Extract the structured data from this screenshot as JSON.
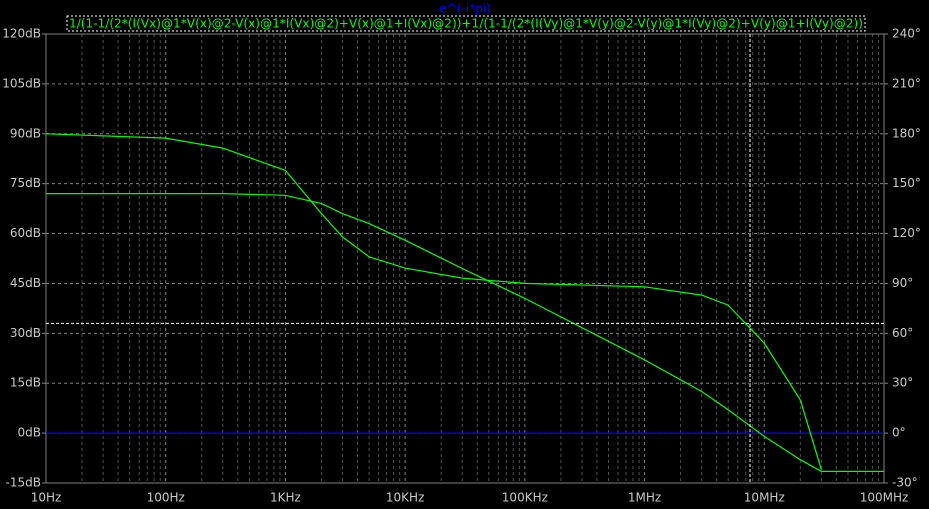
{
  "chart_data": {
    "type": "line",
    "title": "e^(-i*pi)",
    "x_scale": "log",
    "background": "#000000",
    "grid": true,
    "x": [
      10,
      100,
      300,
      1000,
      2000,
      3000,
      5000,
      10000,
      30000,
      100000,
      1000000,
      3000000,
      5000000,
      10000000,
      20000000,
      30000000,
      50000000,
      100000000
    ],
    "series": [
      {
        "name": "e^(-i*pi)",
        "color": "#0000ff",
        "values": [
          0,
          0,
          0,
          0,
          0,
          0,
          0,
          0,
          0,
          0,
          0,
          0,
          0,
          0,
          0,
          0,
          0,
          0
        ]
      },
      {
        "name": "1/(1-1/(2*(I(Vx)@1*V(x)@2-V(x)@1*I(Vx)@2)+V(x)@1+I(Vx)@2))+1/(1-1/(2*(I(Vy)@1*V(y)@2-V(y)@1*I(Vy)@2)+V(y)@1+I(Vy)@2))",
        "color": "#00ff00",
        "values": [
          90,
          88.7,
          85.7,
          79,
          66,
          59,
          53,
          49.6,
          46.6,
          45,
          44,
          41.5,
          38.5,
          27,
          10,
          -11,
          null,
          null
        ],
        "phase": [
          144,
          144,
          144,
          143,
          138,
          132,
          126,
          116,
          99,
          81,
          44,
          25,
          14,
          -2,
          -16,
          -23,
          -23,
          -23
        ],
        "phase_axis": "y2"
      }
    ],
    "xlim": [
      10,
      100000000
    ],
    "xticks": [
      {
        "value": 10,
        "label": "10Hz"
      },
      {
        "value": 100,
        "label": "100Hz"
      },
      {
        "value": 1000,
        "label": "1KHz"
      },
      {
        "value": 10000,
        "label": "10KHz"
      },
      {
        "value": 100000,
        "label": "100KHz"
      },
      {
        "value": 1000000,
        "label": "1MHz"
      },
      {
        "value": 10000000,
        "label": "10MHz"
      },
      {
        "value": 100000000,
        "label": "100MHz"
      }
    ],
    "ylim": [
      -15,
      120
    ],
    "yticks": [
      {
        "value": -15,
        "label": "-15dB"
      },
      {
        "value": 0,
        "label": "0dB"
      },
      {
        "value": 15,
        "label": "15dB"
      },
      {
        "value": 30,
        "label": "30dB"
      },
      {
        "value": 45,
        "label": "45dB"
      },
      {
        "value": 60,
        "label": "60dB"
      },
      {
        "value": 75,
        "label": "75dB"
      },
      {
        "value": 90,
        "label": "90dB"
      },
      {
        "value": 105,
        "label": "105dB"
      },
      {
        "value": 120,
        "label": "120dB"
      }
    ],
    "y2lim": [
      -30,
      240
    ],
    "y2ticks": [
      {
        "value": -30,
        "label": "-30°"
      },
      {
        "value": 0,
        "label": "0°"
      },
      {
        "value": 30,
        "label": "30°"
      },
      {
        "value": 60,
        "label": "60°"
      },
      {
        "value": 90,
        "label": "90°"
      },
      {
        "value": 120,
        "label": "120°"
      },
      {
        "value": 150,
        "label": "150°"
      },
      {
        "value": 180,
        "label": "180°"
      },
      {
        "value": 210,
        "label": "210°"
      },
      {
        "value": 240,
        "label": "240°"
      }
    ],
    "cursor": {
      "x": 7600000,
      "y": 33
    }
  }
}
